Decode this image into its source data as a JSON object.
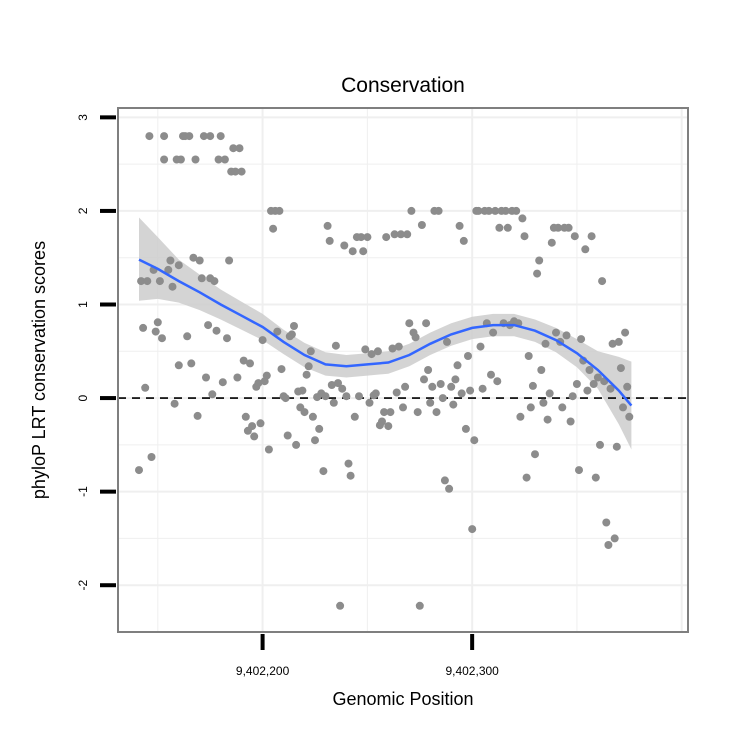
{
  "chart_data": {
    "type": "scatter",
    "title": "Conservation",
    "xlabel": "Genomic Position",
    "ylabel": "phyloP LRT conservation scores",
    "xlim": [
      9402131,
      9402403
    ],
    "ylim": [
      -2.5,
      3.1
    ],
    "xticks": [
      {
        "value": 9402200,
        "label": "9,402,200"
      },
      {
        "value": 9402300,
        "label": "9,402,300"
      }
    ],
    "yticks": [
      {
        "value": 3,
        "label": "3"
      },
      {
        "value": 2,
        "label": "2"
      },
      {
        "value": 1,
        "label": "1"
      },
      {
        "value": 0,
        "label": "0"
      },
      {
        "value": -1,
        "label": "-1"
      },
      {
        "value": -2,
        "label": "-2"
      }
    ],
    "reference_line": {
      "y": 0,
      "style": "dashed"
    },
    "grid": true,
    "colors": {
      "points": "#8c8c8c",
      "smooth": "#3366ff",
      "ribbon": "#cccccc",
      "panel_border": "#7f7f7f",
      "grid": "#efefef",
      "reference": "#000000"
    },
    "points": [
      [
        9402141,
        -0.77
      ],
      [
        9402142,
        1.25
      ],
      [
        9402143,
        0.75
      ],
      [
        9402144,
        0.11
      ],
      [
        9402145,
        1.25
      ],
      [
        9402146,
        2.8
      ],
      [
        9402147,
        -0.63
      ],
      [
        9402148,
        1.37
      ],
      [
        9402149,
        0.71
      ],
      [
        9402150,
        0.81
      ],
      [
        9402151,
        1.25
      ],
      [
        9402152,
        0.64
      ],
      [
        9402153,
        2.8
      ],
      [
        9402153,
        2.55
      ],
      [
        9402155,
        1.37
      ],
      [
        9402156,
        1.47
      ],
      [
        9402157,
        1.19
      ],
      [
        9402158,
        -0.06
      ],
      [
        9402159,
        2.55
      ],
      [
        9402160,
        1.42
      ],
      [
        9402160,
        0.35
      ],
      [
        9402161,
        2.55
      ],
      [
        9402162,
        2.8
      ],
      [
        9402163,
        2.8
      ],
      [
        9402164,
        0.66
      ],
      [
        9402165,
        2.8
      ],
      [
        9402166,
        0.37
      ],
      [
        9402167,
        1.5
      ],
      [
        9402168,
        2.55
      ],
      [
        9402169,
        -0.19
      ],
      [
        9402170,
        1.47
      ],
      [
        9402171,
        1.28
      ],
      [
        9402172,
        2.8
      ],
      [
        9402173,
        0.22
      ],
      [
        9402174,
        0.78
      ],
      [
        9402175,
        1.28
      ],
      [
        9402175,
        2.8
      ],
      [
        9402176,
        0.04
      ],
      [
        9402177,
        1.25
      ],
      [
        9402178,
        0.72
      ],
      [
        9402179,
        2.55
      ],
      [
        9402180,
        2.8
      ],
      [
        9402181,
        0.17
      ],
      [
        9402182,
        2.55
      ],
      [
        9402183,
        0.64
      ],
      [
        9402184,
        1.47
      ],
      [
        9402185,
        2.42
      ],
      [
        9402186,
        2.67
      ],
      [
        9402187,
        2.42
      ],
      [
        9402188,
        0.22
      ],
      [
        9402189,
        2.67
      ],
      [
        9402190,
        2.42
      ],
      [
        9402191,
        0.4
      ],
      [
        9402192,
        -0.2
      ],
      [
        9402193,
        -0.35
      ],
      [
        9402194,
        0.37
      ],
      [
        9402195,
        -0.3
      ],
      [
        9402196,
        -0.41
      ],
      [
        9402197,
        0.12
      ],
      [
        9402198,
        0.16
      ],
      [
        9402199,
        -0.27
      ],
      [
        9402200,
        0.62
      ],
      [
        9402201,
        0.18
      ],
      [
        9402202,
        0.24
      ],
      [
        9402203,
        -0.55
      ],
      [
        9402204,
        2.0
      ],
      [
        9402205,
        1.81
      ],
      [
        9402206,
        2.0
      ],
      [
        9402207,
        0.71
      ],
      [
        9402208,
        2.0
      ],
      [
        9402209,
        0.31
      ],
      [
        9402210,
        0.02
      ],
      [
        9402211,
        0.0
      ],
      [
        9402212,
        -0.4
      ],
      [
        9402213,
        0.66
      ],
      [
        9402214,
        0.68
      ],
      [
        9402215,
        0.77
      ],
      [
        9402216,
        -0.5
      ],
      [
        9402217,
        0.07
      ],
      [
        9402218,
        -0.1
      ],
      [
        9402219,
        0.08
      ],
      [
        9402220,
        -0.15
      ],
      [
        9402221,
        0.25
      ],
      [
        9402222,
        0.34
      ],
      [
        9402223,
        0.5
      ],
      [
        9402224,
        -0.2
      ],
      [
        9402225,
        -0.45
      ],
      [
        9402226,
        0.01
      ],
      [
        9402227,
        -0.33
      ],
      [
        9402228,
        0.05
      ],
      [
        9402229,
        -0.78
      ],
      [
        9402230,
        0.02
      ],
      [
        9402231,
        1.84
      ],
      [
        9402232,
        1.68
      ],
      [
        9402233,
        0.14
      ],
      [
        9402234,
        -0.05
      ],
      [
        9402235,
        0.56
      ],
      [
        9402236,
        0.16
      ],
      [
        9402237,
        -2.22
      ],
      [
        9402238,
        0.1
      ],
      [
        9402239,
        1.63
      ],
      [
        9402240,
        0.02
      ],
      [
        9402241,
        -0.7
      ],
      [
        9402242,
        -0.83
      ],
      [
        9402243,
        1.57
      ],
      [
        9402244,
        -0.2
      ],
      [
        9402245,
        1.72
      ],
      [
        9402246,
        0.02
      ],
      [
        9402247,
        1.72
      ],
      [
        9402248,
        1.57
      ],
      [
        9402249,
        0.52
      ],
      [
        9402250,
        1.72
      ],
      [
        9402251,
        -0.05
      ],
      [
        9402252,
        0.47
      ],
      [
        9402253,
        0.03
      ],
      [
        9402254,
        0.05
      ],
      [
        9402255,
        0.5
      ],
      [
        9402256,
        -0.29
      ],
      [
        9402257,
        -0.25
      ],
      [
        9402258,
        -0.15
      ],
      [
        9402259,
        1.72
      ],
      [
        9402260,
        -0.3
      ],
      [
        9402261,
        -0.15
      ],
      [
        9402262,
        0.53
      ],
      [
        9402263,
        1.75
      ],
      [
        9402264,
        0.06
      ],
      [
        9402265,
        0.55
      ],
      [
        9402266,
        1.75
      ],
      [
        9402267,
        -0.1
      ],
      [
        9402268,
        0.12
      ],
      [
        9402269,
        1.75
      ],
      [
        9402270,
        0.8
      ],
      [
        9402271,
        2.0
      ],
      [
        9402272,
        0.7
      ],
      [
        9402273,
        0.65
      ],
      [
        9402274,
        -0.15
      ],
      [
        9402275,
        -2.22
      ],
      [
        9402276,
        1.85
      ],
      [
        9402277,
        0.2
      ],
      [
        9402278,
        0.8
      ],
      [
        9402279,
        0.3
      ],
      [
        9402280,
        -0.05
      ],
      [
        9402281,
        0.12
      ],
      [
        9402282,
        2.0
      ],
      [
        9402283,
        -0.15
      ],
      [
        9402284,
        2.0
      ],
      [
        9402285,
        0.15
      ],
      [
        9402286,
        0.0
      ],
      [
        9402287,
        -0.88
      ],
      [
        9402288,
        0.6
      ],
      [
        9402289,
        -0.97
      ],
      [
        9402290,
        0.12
      ],
      [
        9402291,
        -0.07
      ],
      [
        9402292,
        0.2
      ],
      [
        9402293,
        0.35
      ],
      [
        9402294,
        1.84
      ],
      [
        9402295,
        0.05
      ],
      [
        9402296,
        1.68
      ],
      [
        9402297,
        -0.33
      ],
      [
        9402298,
        0.45
      ],
      [
        9402299,
        0.08
      ],
      [
        9402300,
        -1.4
      ],
      [
        9402301,
        -0.45
      ],
      [
        9402302,
        2.0
      ],
      [
        9402303,
        2.0
      ],
      [
        9402304,
        0.55
      ],
      [
        9402305,
        0.1
      ],
      [
        9402306,
        2.0
      ],
      [
        9402307,
        0.8
      ],
      [
        9402308,
        2.0
      ],
      [
        9402309,
        0.25
      ],
      [
        9402310,
        0.7
      ],
      [
        9402311,
        2.0
      ],
      [
        9402312,
        0.18
      ],
      [
        9402313,
        1.82
      ],
      [
        9402314,
        2.0
      ],
      [
        9402315,
        0.8
      ],
      [
        9402316,
        2.0
      ],
      [
        9402317,
        1.82
      ],
      [
        9402318,
        0.78
      ],
      [
        9402319,
        2.0
      ],
      [
        9402320,
        0.82
      ],
      [
        9402321,
        2.0
      ],
      [
        9402322,
        0.8
      ],
      [
        9402323,
        -0.2
      ],
      [
        9402324,
        1.92
      ],
      [
        9402325,
        1.73
      ],
      [
        9402326,
        -0.85
      ],
      [
        9402327,
        0.45
      ],
      [
        9402328,
        -0.1
      ],
      [
        9402329,
        0.13
      ],
      [
        9402330,
        -0.6
      ],
      [
        9402331,
        1.33
      ],
      [
        9402332,
        1.47
      ],
      [
        9402333,
        0.3
      ],
      [
        9402334,
        -0.05
      ],
      [
        9402335,
        0.58
      ],
      [
        9402336,
        -0.23
      ],
      [
        9402337,
        0.05
      ],
      [
        9402338,
        1.66
      ],
      [
        9402339,
        1.82
      ],
      [
        9402340,
        0.7
      ],
      [
        9402341,
        1.82
      ],
      [
        9402342,
        0.6
      ],
      [
        9402343,
        -0.1
      ],
      [
        9402344,
        1.82
      ],
      [
        9402345,
        0.67
      ],
      [
        9402346,
        1.82
      ],
      [
        9402347,
        -0.25
      ],
      [
        9402348,
        0.02
      ],
      [
        9402349,
        1.73
      ],
      [
        9402350,
        0.15
      ],
      [
        9402351,
        -0.77
      ],
      [
        9402352,
        0.63
      ],
      [
        9402353,
        0.4
      ],
      [
        9402354,
        1.59
      ],
      [
        9402355,
        0.08
      ],
      [
        9402356,
        0.3
      ],
      [
        9402357,
        1.73
      ],
      [
        9402358,
        0.15
      ],
      [
        9402359,
        -0.85
      ],
      [
        9402360,
        0.22
      ],
      [
        9402361,
        -0.5
      ],
      [
        9402362,
        1.25
      ],
      [
        9402363,
        0.18
      ],
      [
        9402364,
        -1.33
      ],
      [
        9402365,
        -1.57
      ],
      [
        9402366,
        0.1
      ],
      [
        9402367,
        0.58
      ],
      [
        9402368,
        -1.5
      ],
      [
        9402369,
        -0.52
      ],
      [
        9402370,
        0.6
      ],
      [
        9402371,
        0.32
      ],
      [
        9402372,
        -0.1
      ],
      [
        9402373,
        0.7
      ],
      [
        9402374,
        0.12
      ],
      [
        9402375,
        -0.2
      ]
    ],
    "smooth": {
      "x": [
        9402141,
        9402150,
        9402160,
        9402170,
        9402180,
        9402190,
        9402200,
        9402210,
        9402220,
        9402230,
        9402240,
        9402250,
        9402260,
        9402270,
        9402280,
        9402290,
        9402300,
        9402310,
        9402320,
        9402330,
        9402340,
        9402350,
        9402360,
        9402370,
        9402376
      ],
      "y": [
        1.48,
        1.38,
        1.25,
        1.13,
        1.0,
        0.88,
        0.76,
        0.6,
        0.46,
        0.36,
        0.34,
        0.36,
        0.38,
        0.46,
        0.58,
        0.68,
        0.75,
        0.78,
        0.78,
        0.72,
        0.62,
        0.48,
        0.3,
        0.08,
        -0.08
      ],
      "lower": [
        1.04,
        1.06,
        1.02,
        0.94,
        0.84,
        0.73,
        0.62,
        0.47,
        0.33,
        0.24,
        0.22,
        0.24,
        0.26,
        0.34,
        0.46,
        0.56,
        0.63,
        0.66,
        0.66,
        0.6,
        0.49,
        0.33,
        0.1,
        -0.28,
        -0.55
      ],
      "upper": [
        1.93,
        1.72,
        1.48,
        1.32,
        1.16,
        1.03,
        0.9,
        0.73,
        0.59,
        0.49,
        0.46,
        0.48,
        0.5,
        0.58,
        0.7,
        0.8,
        0.87,
        0.9,
        0.9,
        0.84,
        0.75,
        0.63,
        0.5,
        0.44,
        0.39
      ]
    }
  }
}
